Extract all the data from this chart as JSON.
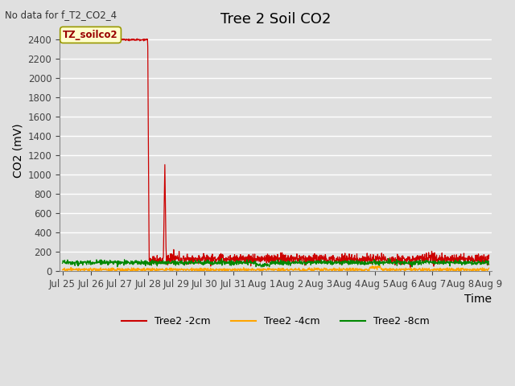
{
  "title": "Tree 2 Soil CO2",
  "top_left_text": "No data for f_T2_CO2_4",
  "ylabel": "CO2 (mV)",
  "xlabel": "Time",
  "annotation_label": "TZ_soilco2",
  "ylim": [
    0,
    2500
  ],
  "yticks": [
    0,
    200,
    400,
    600,
    800,
    1000,
    1200,
    1400,
    1600,
    1800,
    2000,
    2200,
    2400
  ],
  "background_color": "#e0e0e0",
  "plot_bg_color": "#e0e0e0",
  "grid_color": "#ffffff",
  "line_colors": {
    "2cm": "#cc0000",
    "4cm": "#ffa500",
    "8cm": "#008800"
  },
  "legend_labels": [
    "Tree2 -2cm",
    "Tree2 -4cm",
    "Tree2 -8cm"
  ],
  "x_tick_labels": [
    "Jul 25",
    "Jul 26",
    "Jul 27",
    "Jul 28",
    "Jul 29",
    "Jul 30",
    "Jul 31",
    "Aug 1",
    "Aug 2",
    "Aug 3",
    "Aug 4",
    "Aug 5",
    "Aug 6",
    "Aug 7",
    "Aug 8",
    "Aug 9"
  ],
  "title_fontsize": 13,
  "label_fontsize": 10,
  "tick_fontsize": 8.5
}
